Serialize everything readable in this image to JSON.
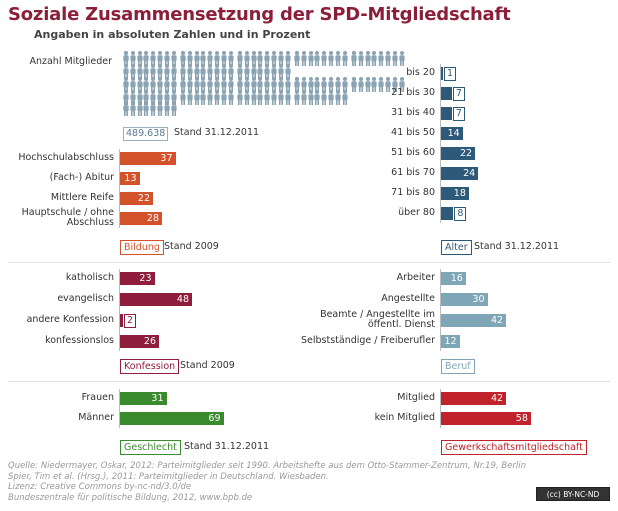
{
  "title": "Soziale Zusammensetzung der SPD-Mitgliedschaft",
  "subtitle": "Angaben in absoluten Zahlen und in Prozent",
  "colors": {
    "title": "#8b1f3a",
    "bildung": "#d4522a",
    "konfession": "#8f1d3c",
    "geschlecht": "#3a8a2e",
    "alter": "#2e5a7a",
    "beruf": "#7fa6b6",
    "gewerkschaft": "#c0232b",
    "person": "#8aa4b4"
  },
  "members": {
    "label": "Anzahl Mitglieder",
    "value": "489.638",
    "stand": "Stand 31.12.2011",
    "icon": "person-icon"
  },
  "chart_data": [
    {
      "id": "bildung",
      "type": "bar",
      "label": "Bildung",
      "stand": "Stand 2009",
      "categories": [
        "Hochschulabschluss",
        "(Fach-) Abitur",
        "Mittlere Reife",
        "Hauptschule / ohne Abschluss"
      ],
      "values": [
        37,
        13,
        22,
        28
      ]
    },
    {
      "id": "konfession",
      "type": "bar",
      "label": "Konfession",
      "stand": "Stand 2009",
      "categories": [
        "katholisch",
        "evangelisch",
        "andere Konfession",
        "konfessionslos"
      ],
      "values": [
        23,
        48,
        2,
        26
      ]
    },
    {
      "id": "geschlecht",
      "type": "bar",
      "label": "Geschlecht",
      "stand": "Stand 31.12.2011",
      "categories": [
        "Frauen",
        "Männer"
      ],
      "values": [
        31,
        69
      ]
    },
    {
      "id": "alter",
      "type": "bar",
      "label": "Alter",
      "stand": "Stand 31.12.2011",
      "categories": [
        "bis 20",
        "21 bis 30",
        "31 bis 40",
        "41 bis 50",
        "51 bis 60",
        "61 bis 70",
        "71 bis 80",
        "über 80"
      ],
      "values": [
        1,
        7,
        7,
        14,
        22,
        24,
        18,
        8
      ]
    },
    {
      "id": "beruf",
      "type": "bar",
      "label": "Beruf",
      "stand": "",
      "categories": [
        "Arbeiter",
        "Angestellte",
        "Beamte / Angestellte im öffentl. Dienst",
        "Selbstständige / Freiberufler"
      ],
      "values": [
        16,
        30,
        42,
        12
      ]
    },
    {
      "id": "gewerkschaft",
      "type": "bar",
      "label": "Gewerkschaftsmitgliedschaft",
      "stand": "",
      "categories": [
        "Mitglied",
        "kein Mitglied"
      ],
      "values": [
        42,
        58
      ]
    }
  ],
  "source": [
    "Quelle: Niedermayer, Oskar, 2012: Parteimitglieder seit 1990. Arbeitshefte aus dem Otto-Stammer-Zentrum, Nr.19, Berlin",
    "Spier, Tim et al. (Hrsg.), 2011: Parteimitglieder in Deutschland. Wiesbaden.",
    "Lizenz: Creative Commons  by-nc-nd/3.0/de",
    "Bundeszentrale für politische Bildung, 2012, www.bpb.de"
  ],
  "license_badge": "(cc) BY-NC-ND"
}
